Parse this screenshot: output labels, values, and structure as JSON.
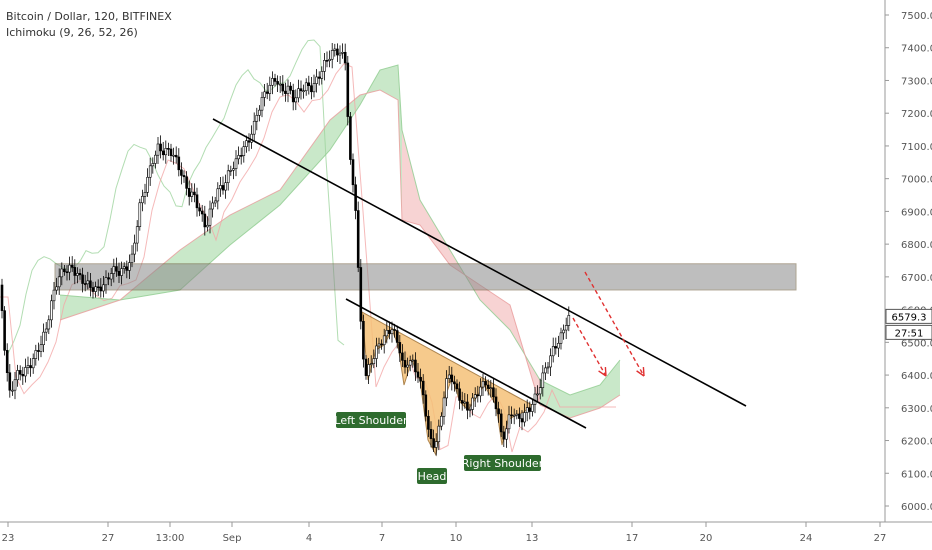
{
  "header": {
    "title": "Bitcoin / Dollar, 120, BITFINEX",
    "indicator": "Ichimoku (9, 26, 52, 26)"
  },
  "colors": {
    "up": "#ffffff",
    "down": "#000000",
    "cloud_green": "#b7e0b7",
    "cloud_red": "#f4c4c4",
    "zone_fill": "#8a8a8a",
    "pattern_fill": "#f5c178",
    "label_bg": "#2e6b2e",
    "forecast": "#e03030",
    "trend": "#000000"
  },
  "chart_data": {
    "type": "line",
    "title": "Bitcoin / Dollar, 120, BITFINEX",
    "ylim": [
      5950,
      7550
    ],
    "y_ticks": [
      "7500.0",
      "7400.0",
      "7300.0",
      "7200.0",
      "7100.0",
      "7000.0",
      "6900.0",
      "6800.0",
      "6700.0",
      "6600.0",
      "6500.0",
      "6400.0",
      "6300.0",
      "6200.0",
      "6100.0",
      "6000.0"
    ],
    "x_ticks": [
      "23",
      "27",
      "13:00",
      "Sep",
      "4",
      "7",
      "10",
      "13",
      "17",
      "20",
      "24",
      "27"
    ],
    "last_price": "6579.3",
    "countdown": "27:51",
    "series": [
      {
        "x": [
          "23",
          "27",
          "13:00",
          "Sep",
          "4",
          "7",
          "10",
          "13"
        ],
        "values": [
          6450,
          6720,
          7110,
          7000,
          7400,
          6300,
          6180,
          6579
        ]
      }
    ],
    "zones": [
      {
        "from": 6660,
        "to": 6740
      }
    ],
    "trendlines": [
      {
        "x": [
          "27 (late)",
          "20 (late)"
        ],
        "values": [
          7190,
          6300
        ]
      },
      {
        "x": [
          "6",
          "15"
        ],
        "values": [
          6520,
          6240
        ]
      }
    ],
    "forecast_arrows": 2,
    "annotations": [
      "Left Shoulder",
      "Head",
      "Right Shoulder"
    ]
  }
}
